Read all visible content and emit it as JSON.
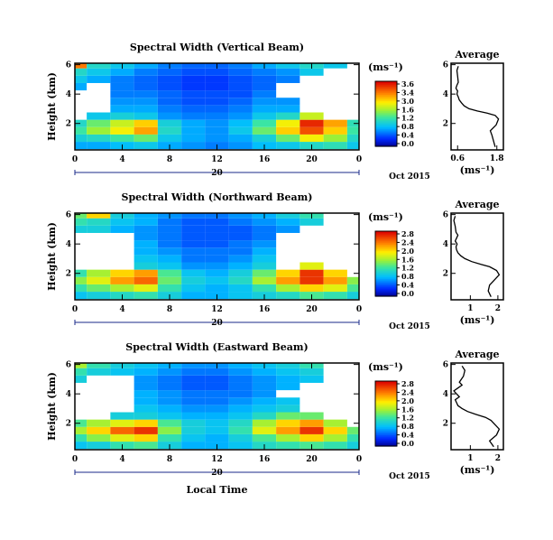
{
  "chart_data": [
    {
      "type": "heatmap",
      "title": "Spectral Width (Vertical Beam)",
      "ylabel": "Height (km)",
      "yticks": [
        "2",
        "4",
        "6"
      ],
      "xticks": [
        "0",
        "4",
        "8",
        "12",
        "16",
        "20",
        "0"
      ],
      "date_marker": "20",
      "date_label": "Oct 2015",
      "colorbar": {
        "unit": "(ms⁻¹)",
        "ticks": [
          "3.6",
          "3.4",
          "3.0",
          "1.6",
          "1.2",
          "0.8",
          "0.4",
          "0.0"
        ]
      },
      "x": [
        0,
        2,
        4,
        6,
        8,
        10,
        12,
        14,
        16,
        18,
        20,
        22,
        24
      ],
      "y": [
        0.5,
        1.0,
        1.5,
        2.0,
        2.5,
        3.0,
        3.5,
        4.0,
        4.5,
        5.0,
        5.5,
        6.0
      ],
      "ylim": [
        0.2,
        6.1
      ],
      "xlim": [
        0,
        24
      ],
      "values": [
        [
          1.0,
          1.0,
          1.1,
          1.2,
          1.0,
          0.9,
          0.8,
          0.9,
          1.1,
          1.2,
          1.4,
          1.5,
          1.2
        ],
        [
          1.3,
          1.4,
          1.6,
          1.8,
          1.2,
          1.0,
          0.9,
          1.0,
          1.3,
          1.8,
          2.4,
          2.0,
          1.4
        ],
        [
          1.6,
          2.0,
          2.4,
          2.8,
          1.4,
          1.0,
          0.9,
          1.2,
          1.8,
          2.6,
          3.2,
          2.6,
          1.6
        ],
        [
          1.4,
          1.8,
          2.2,
          2.6,
          1.3,
          1.0,
          0.9,
          1.1,
          1.6,
          2.4,
          3.4,
          2.8,
          1.5
        ],
        [
          null,
          1.2,
          1.3,
          1.2,
          0.9,
          0.8,
          0.8,
          0.9,
          1.2,
          1.4,
          2.2,
          null,
          null
        ],
        [
          null,
          null,
          1.0,
          1.0,
          0.8,
          0.7,
          0.7,
          0.8,
          1.0,
          1.0,
          null,
          null,
          null
        ],
        [
          null,
          null,
          0.9,
          0.9,
          0.7,
          0.6,
          0.6,
          0.7,
          0.9,
          0.9,
          null,
          null,
          null
        ],
        [
          null,
          null,
          0.8,
          0.8,
          0.7,
          0.6,
          0.6,
          0.6,
          0.8,
          null,
          null,
          null,
          null
        ],
        [
          1.0,
          null,
          0.8,
          0.7,
          0.6,
          0.5,
          0.5,
          0.6,
          0.7,
          null,
          null,
          null,
          null
        ],
        [
          1.2,
          1.0,
          0.8,
          0.7,
          0.6,
          0.5,
          0.5,
          0.6,
          0.7,
          0.8,
          null,
          null,
          null
        ],
        [
          1.4,
          1.2,
          1.0,
          0.8,
          0.7,
          0.6,
          0.6,
          0.7,
          0.8,
          0.9,
          1.2,
          null,
          null
        ],
        [
          3.0,
          1.4,
          1.2,
          1.0,
          0.8,
          0.7,
          0.7,
          0.8,
          1.0,
          1.2,
          1.4,
          1.2,
          null
        ]
      ]
    },
    {
      "type": "heatmap",
      "title": "Spectral Width (Northward Beam)",
      "ylabel": "Height (km)",
      "yticks": [
        "2",
        "4",
        "6"
      ],
      "xticks": [
        "0",
        "4",
        "8",
        "12",
        "16",
        "20",
        "0"
      ],
      "date_marker": "20",
      "date_label": "Oct 2015",
      "colorbar": {
        "unit": "(ms⁻¹)",
        "ticks": [
          "2.8",
          "2.4",
          "2.0",
          "1.6",
          "1.2",
          "0.8",
          "0.4",
          "0.0"
        ]
      },
      "x": [
        0,
        2,
        4,
        6,
        8,
        10,
        12,
        14,
        16,
        18,
        20,
        22,
        24
      ],
      "y": [
        0.5,
        1.0,
        1.5,
        2.0,
        2.5,
        3.0,
        3.5,
        4.0,
        4.5,
        5.0,
        5.5,
        6.0
      ],
      "ylim": [
        0.2,
        6.1
      ],
      "xlim": [
        0,
        24
      ],
      "values": [
        [
          0.9,
          1.0,
          1.1,
          1.2,
          1.0,
          0.8,
          0.8,
          0.9,
          1.0,
          1.1,
          1.3,
          1.2,
          1.0
        ],
        [
          1.2,
          1.4,
          1.6,
          1.8,
          1.2,
          0.9,
          0.8,
          0.9,
          1.2,
          1.6,
          2.0,
          1.8,
          1.3
        ],
        [
          1.5,
          1.8,
          2.2,
          2.4,
          1.4,
          1.0,
          0.9,
          1.1,
          1.6,
          2.2,
          2.6,
          2.2,
          1.5
        ],
        [
          1.2,
          1.6,
          2.0,
          2.2,
          1.3,
          0.9,
          0.8,
          1.0,
          1.4,
          2.0,
          2.6,
          2.0,
          null
        ],
        [
          null,
          null,
          null,
          1.0,
          0.9,
          0.7,
          0.7,
          0.8,
          1.0,
          null,
          1.8,
          null,
          null
        ],
        [
          null,
          null,
          null,
          0.9,
          0.8,
          0.6,
          0.6,
          0.7,
          0.9,
          null,
          null,
          null,
          null
        ],
        [
          null,
          null,
          null,
          0.8,
          0.7,
          0.6,
          0.6,
          0.6,
          0.8,
          null,
          null,
          null,
          null
        ],
        [
          null,
          null,
          null,
          0.8,
          0.6,
          0.5,
          0.5,
          0.6,
          0.7,
          null,
          null,
          null,
          null
        ],
        [
          null,
          null,
          null,
          0.7,
          0.6,
          0.5,
          0.5,
          0.5,
          0.6,
          null,
          null,
          null,
          null
        ],
        [
          1.0,
          1.0,
          0.8,
          0.7,
          0.6,
          0.5,
          0.5,
          0.5,
          0.6,
          0.7,
          null,
          null,
          null
        ],
        [
          1.2,
          1.1,
          0.9,
          0.8,
          0.6,
          0.5,
          0.5,
          0.6,
          0.7,
          0.8,
          1.0,
          null,
          null
        ],
        [
          1.4,
          2.0,
          1.0,
          0.8,
          0.7,
          0.6,
          0.6,
          0.7,
          0.8,
          1.0,
          1.2,
          null,
          null
        ]
      ]
    },
    {
      "type": "heatmap",
      "title": "Spectral Width (Eastward Beam)",
      "ylabel": "Height (km)",
      "yticks": [
        "2",
        "4",
        "6"
      ],
      "xticks": [
        "0",
        "4",
        "8",
        "12",
        "16",
        "20",
        "0"
      ],
      "date_marker": "20",
      "date_label": "Oct 2015",
      "xlabel": "Local Time",
      "colorbar": {
        "unit": "(ms⁻¹)",
        "ticks": [
          "2.8",
          "2.4",
          "2.0",
          "1.6",
          "1.2",
          "0.8",
          "0.4",
          "0.0"
        ]
      },
      "x": [
        0,
        2,
        4,
        6,
        8,
        10,
        12,
        14,
        16,
        18,
        20,
        22,
        24
      ],
      "y": [
        0.5,
        1.0,
        1.5,
        2.0,
        2.5,
        3.0,
        3.5,
        4.0,
        4.5,
        5.0,
        5.5,
        6.0
      ],
      "ylim": [
        0.2,
        6.1
      ],
      "xlim": [
        0,
        24
      ],
      "values": [
        [
          0.9,
          1.0,
          1.2,
          1.3,
          1.0,
          0.8,
          0.8,
          0.9,
          1.1,
          1.2,
          1.3,
          1.2,
          1.0
        ],
        [
          1.2,
          1.5,
          1.8,
          2.0,
          1.2,
          0.9,
          0.8,
          1.0,
          1.3,
          1.6,
          2.0,
          1.6,
          1.2
        ],
        [
          1.6,
          2.0,
          2.4,
          2.6,
          1.5,
          1.0,
          0.9,
          1.2,
          1.8,
          2.2,
          2.6,
          2.0,
          1.4
        ],
        [
          1.3,
          1.6,
          1.8,
          2.0,
          1.3,
          1.0,
          0.9,
          1.1,
          1.6,
          2.0,
          2.2,
          1.6,
          null
        ],
        [
          null,
          null,
          1.0,
          1.0,
          0.9,
          0.8,
          0.8,
          0.9,
          1.1,
          1.4,
          1.4,
          null,
          null
        ],
        [
          null,
          null,
          null,
          0.9,
          0.8,
          0.7,
          0.7,
          0.8,
          0.9,
          1.0,
          null,
          null,
          null
        ],
        [
          null,
          null,
          null,
          0.8,
          0.7,
          0.6,
          0.6,
          0.7,
          0.8,
          0.9,
          null,
          null,
          null
        ],
        [
          null,
          null,
          null,
          0.8,
          0.7,
          0.6,
          0.6,
          0.6,
          0.7,
          null,
          null,
          null,
          null
        ],
        [
          null,
          null,
          null,
          0.7,
          0.6,
          0.5,
          0.5,
          0.6,
          0.7,
          0.8,
          null,
          null,
          null
        ],
        [
          1.0,
          null,
          null,
          0.7,
          0.6,
          0.5,
          0.5,
          0.6,
          0.7,
          0.8,
          0.9,
          null,
          null
        ],
        [
          1.2,
          1.0,
          0.9,
          0.8,
          0.7,
          0.6,
          0.6,
          0.7,
          0.8,
          0.9,
          1.0,
          null,
          null
        ],
        [
          1.6,
          1.2,
          1.0,
          0.9,
          0.8,
          0.7,
          0.7,
          0.8,
          0.9,
          1.0,
          1.2,
          null,
          null
        ]
      ]
    },
    {
      "type": "line",
      "title": "Average",
      "xlabel": "(ms⁻¹)",
      "xticks": [
        "0.6",
        "1.8"
      ],
      "yticks": [
        "2",
        "4",
        "6"
      ],
      "xlim": [
        0.4,
        2.0
      ],
      "ylim": [
        0.2,
        6.1
      ],
      "x": [
        1.75,
        1.7,
        1.65,
        1.6,
        1.78,
        1.85,
        1.75,
        1.5,
        1.2,
        0.95,
        0.8,
        0.72,
        0.65,
        0.62,
        0.58,
        0.6,
        0.55,
        0.58,
        0.62,
        0.6,
        0.58,
        0.62
      ],
      "y": [
        0.4,
        0.8,
        1.2,
        1.5,
        1.9,
        2.3,
        2.55,
        2.7,
        2.85,
        3.0,
        3.2,
        3.4,
        3.6,
        3.8,
        4.0,
        4.2,
        4.4,
        4.6,
        4.8,
        5.2,
        5.6,
        5.9
      ]
    },
    {
      "type": "line",
      "title": "Average",
      "xlabel": "(ms⁻¹)",
      "xticks": [
        "1",
        "2"
      ],
      "yticks": [
        "2",
        "4",
        "6"
      ],
      "xlim": [
        0.3,
        2.2
      ],
      "ylim": [
        0.2,
        6.1
      ],
      "x": [
        1.75,
        1.65,
        1.7,
        1.85,
        2.05,
        1.95,
        1.7,
        1.4,
        1.05,
        0.8,
        0.65,
        0.55,
        0.5,
        0.48,
        0.52,
        0.45,
        0.5,
        0.55,
        0.48,
        0.45,
        0.4,
        0.45
      ],
      "y": [
        0.4,
        0.8,
        1.2,
        1.5,
        1.9,
        2.2,
        2.45,
        2.6,
        2.8,
        3.0,
        3.2,
        3.4,
        3.6,
        3.8,
        4.0,
        4.2,
        4.4,
        4.6,
        4.8,
        5.2,
        5.6,
        5.9
      ]
    },
    {
      "type": "line",
      "title": "Average",
      "xlabel": "(ms⁻¹)",
      "xticks": [
        "1",
        "2"
      ],
      "yticks": [
        "2",
        "4",
        "6"
      ],
      "xlim": [
        0.3,
        2.2
      ],
      "ylim": [
        0.2,
        6.1
      ],
      "x": [
        1.85,
        1.7,
        1.95,
        2.05,
        1.9,
        1.75,
        1.55,
        1.2,
        0.9,
        0.7,
        0.55,
        0.5,
        0.45,
        0.6,
        0.5,
        0.4,
        0.55,
        0.7,
        0.6,
        0.75,
        0.8,
        0.7
      ],
      "y": [
        0.4,
        0.8,
        1.2,
        1.6,
        1.9,
        2.2,
        2.4,
        2.6,
        2.8,
        3.0,
        3.2,
        3.4,
        3.6,
        3.8,
        4.0,
        4.2,
        4.4,
        4.6,
        4.8,
        5.2,
        5.6,
        5.9
      ]
    }
  ]
}
